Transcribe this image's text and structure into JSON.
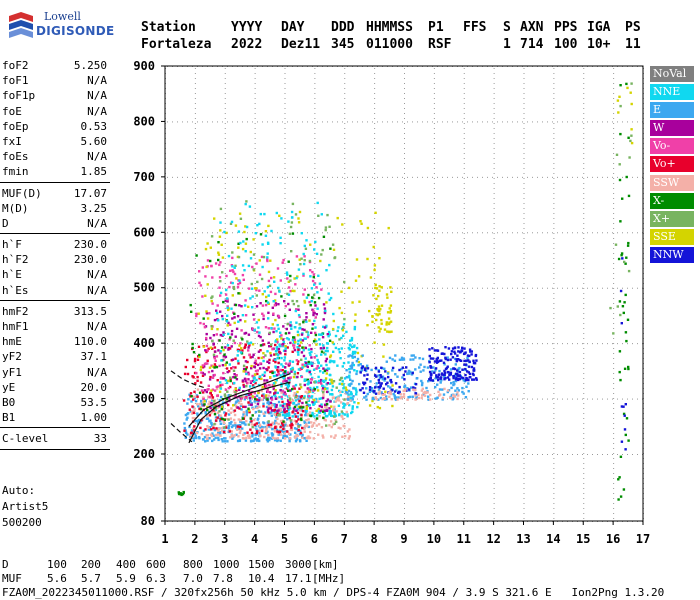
{
  "logo": {
    "line1": "Lowell",
    "line2": "DIGISONDE"
  },
  "header": {
    "row1": [
      "Station",
      "YYYY",
      "DAY",
      "DDD",
      "HHMMSS",
      "P1",
      "FFS",
      "S",
      "AXN",
      "PPS",
      "IGA",
      "PS"
    ],
    "row2": [
      "Fortaleza",
      "2022",
      "Dez11",
      "345",
      "011000",
      "RSF",
      "",
      "1",
      "714",
      "100",
      "10+",
      "11"
    ]
  },
  "params": [
    [
      {
        "name": "foF2",
        "value": "5.250"
      },
      {
        "name": "foF1",
        "value": "N/A"
      },
      {
        "name": "foF1p",
        "value": "N/A"
      },
      {
        "name": "foE",
        "value": "N/A"
      },
      {
        "name": "foEp",
        "value": "0.53"
      },
      {
        "name": "fxI",
        "value": "5.60"
      },
      {
        "name": "foEs",
        "value": "N/A"
      },
      {
        "name": "fmin",
        "value": "1.85"
      }
    ],
    [
      {
        "name": "MUF(D)",
        "value": "17.07"
      },
      {
        "name": "M(D)",
        "value": "3.25"
      },
      {
        "name": "D",
        "value": "N/A"
      }
    ],
    [
      {
        "name": "h`F",
        "value": "230.0"
      },
      {
        "name": "h`F2",
        "value": "230.0"
      },
      {
        "name": "h`E",
        "value": "N/A"
      },
      {
        "name": "h`Es",
        "value": "N/A"
      }
    ],
    [
      {
        "name": "hmF2",
        "value": "313.5"
      },
      {
        "name": "hmF1",
        "value": "N/A"
      },
      {
        "name": "hmE",
        "value": "110.0"
      },
      {
        "name": "yF2",
        "value": "37.1"
      },
      {
        "name": "yF1",
        "value": "N/A"
      },
      {
        "name": "yE",
        "value": "20.0"
      },
      {
        "name": "B0",
        "value": "53.5"
      },
      {
        "name": "B1",
        "value": "1.00"
      }
    ],
    [
      {
        "name": "C-level",
        "value": "33"
      }
    ]
  ],
  "auto": {
    "line1": "Auto:",
    "line2": "Artist5",
    "line3": "500200"
  },
  "legend": [
    {
      "label": "NoVal",
      "color": "#7f7f7f"
    },
    {
      "label": "NNE",
      "color": "#10d8f0"
    },
    {
      "label": "E",
      "color": "#3ca8f0"
    },
    {
      "label": "W",
      "color": "#a8009c"
    },
    {
      "label": "Vo-",
      "color": "#f040a8"
    },
    {
      "label": "Vo+",
      "color": "#e8002c"
    },
    {
      "label": "SSW",
      "color": "#f4b0a8"
    },
    {
      "label": "X-",
      "color": "#008c00"
    },
    {
      "label": "X+",
      "color": "#78b460"
    },
    {
      "label": "SSE",
      "color": "#d4d400"
    },
    {
      "label": "NNW",
      "color": "#1414d8"
    }
  ],
  "footer": {
    "d_label": "D",
    "d_values": [
      "100",
      "200",
      "400",
      "600",
      "800",
      "1000",
      "1500",
      "3000"
    ],
    "d_unit": "[km]",
    "muf_label": "MUF",
    "muf_values": [
      "5.6",
      "5.7",
      "5.9",
      "6.3",
      "7.0",
      "7.8",
      "10.4",
      "17.1"
    ],
    "muf_unit": "[MHz]",
    "info": "FZA0M_2022345011000.RSF / 320fx256h 50 kHz 5.0 km / DPS-4 FZA0M 904 / 3.9 S 321.6 E   Ion2Png 1.3.20"
  },
  "chart_data": {
    "type": "scatter",
    "x_ticks": [
      1,
      2,
      3,
      4,
      5,
      6,
      7,
      8,
      9,
      10,
      11,
      12,
      13,
      14,
      15,
      16,
      17
    ],
    "y_ticks": [
      80,
      200,
      300,
      400,
      500,
      600,
      700,
      800,
      900
    ],
    "xlim": [
      1,
      17
    ],
    "ylim": [
      80,
      900
    ],
    "grid": true,
    "legend_position": "right",
    "clusters": [
      {
        "series": "E",
        "x": [
          1.6,
          5.8
        ],
        "y": [
          225,
          310
        ],
        "count": 380
      },
      {
        "series": "NNE",
        "x": [
          4.6,
          7.4
        ],
        "y": [
          270,
          440
        ],
        "count": 340
      },
      {
        "series": "SSW",
        "x": [
          1.8,
          7.2
        ],
        "y": [
          230,
          320
        ],
        "count": 300
      },
      {
        "series": "Vo+",
        "x": [
          1.6,
          5.6
        ],
        "y": [
          240,
          400
        ],
        "count": 220
      },
      {
        "series": "W",
        "x": [
          2.2,
          6.5
        ],
        "y": [
          280,
          480
        ],
        "count": 260
      },
      {
        "series": "Vo-",
        "x": [
          2.0,
          6.2
        ],
        "y": [
          300,
          560
        ],
        "count": 220
      },
      {
        "series": "SSE",
        "x": [
          2.0,
          8.6
        ],
        "y": [
          280,
          640
        ],
        "count": 200
      },
      {
        "series": "X+",
        "x": [
          2.5,
          7.0
        ],
        "y": [
          250,
          660
        ],
        "count": 120
      },
      {
        "series": "X-",
        "x": [
          1.8,
          6.5
        ],
        "y": [
          260,
          600
        ],
        "count": 100
      },
      {
        "series": "NNE",
        "x": [
          2.7,
          6.6
        ],
        "y": [
          320,
          660
        ],
        "count": 180
      },
      {
        "series": "E",
        "x": [
          7.0,
          11.2
        ],
        "y": [
          300,
          380
        ],
        "count": 220
      },
      {
        "series": "NNW",
        "x": [
          9.8,
          11.4
        ],
        "y": [
          335,
          395
        ],
        "count": 160
      },
      {
        "series": "NNW",
        "x": [
          7.5,
          9.4
        ],
        "y": [
          310,
          360
        ],
        "count": 70
      },
      {
        "series": "SSW",
        "x": [
          8.0,
          10.8
        ],
        "y": [
          300,
          320
        ],
        "count": 60
      },
      {
        "series": "SSE",
        "x": [
          7.9,
          8.6
        ],
        "y": [
          420,
          510
        ],
        "count": 40
      },
      {
        "series": "X-",
        "x": [
          1.4,
          1.6
        ],
        "y": [
          128,
          134
        ],
        "count": 8
      },
      {
        "series": "X-",
        "x": [
          16.1,
          16.5
        ],
        "y": [
          120,
          900
        ],
        "count": 40
      },
      {
        "series": "X+",
        "x": [
          15.8,
          16.6
        ],
        "y": [
          400,
          880
        ],
        "count": 14
      },
      {
        "series": "NNW",
        "x": [
          16.2,
          16.4
        ],
        "y": [
          200,
          560
        ],
        "count": 10
      },
      {
        "series": "SSE",
        "x": [
          16.1,
          16.6
        ],
        "y": [
          760,
          900
        ],
        "count": 8
      }
    ],
    "curves": [
      {
        "style": "solid",
        "points": [
          [
            1.8,
            220
          ],
          [
            2.2,
            262
          ],
          [
            2.7,
            285
          ],
          [
            3.5,
            305
          ],
          [
            4.5,
            320
          ],
          [
            5.2,
            330
          ]
        ]
      },
      {
        "style": "solid",
        "points": [
          [
            1.8,
            250
          ],
          [
            2.3,
            280
          ],
          [
            3.0,
            300
          ],
          [
            4.0,
            320
          ],
          [
            5.2,
            345
          ]
        ]
      },
      {
        "style": "dashed",
        "points": [
          [
            1.2,
            255
          ],
          [
            1.5,
            240
          ],
          [
            1.9,
            222
          ]
        ]
      },
      {
        "style": "dashed",
        "points": [
          [
            1.2,
            350
          ],
          [
            1.6,
            335
          ],
          [
            2.0,
            325
          ],
          [
            2.3,
            320
          ]
        ]
      }
    ]
  }
}
